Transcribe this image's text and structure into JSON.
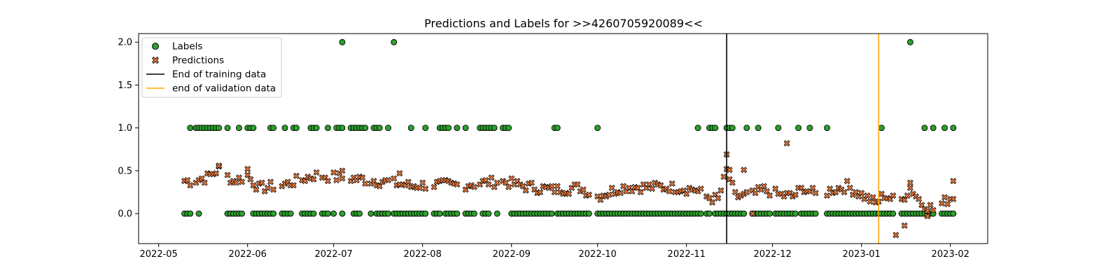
{
  "chart_data": {
    "type": "scatter",
    "title": "Predictions and Labels for >>4260705920089<<",
    "xlabel": "",
    "ylabel": "",
    "xlim": [
      "2022-04-24",
      "2023-02-14"
    ],
    "ylim": [
      -0.35,
      2.1
    ],
    "grid": false,
    "legend_position": "top-left",
    "x_ticks": [
      "2022-05",
      "2022-06",
      "2022-07",
      "2022-08",
      "2022-09",
      "2022-10",
      "2022-11",
      "2022-12",
      "2023-01",
      "2023-02"
    ],
    "y_ticks": [
      "0.0",
      "0.5",
      "1.0",
      "1.5",
      "2.0"
    ],
    "vlines": [
      {
        "name": "End of training data",
        "x": "2022-11-15",
        "color": "#000000"
      },
      {
        "name": "end of validation data",
        "x": "2023-01-07",
        "color": "#FFA500"
      }
    ],
    "series": [
      {
        "name": "Labels",
        "marker": "circle",
        "color": "#2ca02c",
        "groups": [
          {
            "y": 0.0,
            "ranges": [
              [
                "2022-05-10",
                "2022-05-12"
              ],
              [
                "2022-05-15",
                "2022-05-15"
              ],
              [
                "2022-05-25",
                "2022-05-30"
              ],
              [
                "2022-06-03",
                "2022-06-10"
              ],
              [
                "2022-06-13",
                "2022-06-16"
              ],
              [
                "2022-06-20",
                "2022-06-24"
              ],
              [
                "2022-06-27",
                "2022-06-29"
              ],
              [
                "2022-07-01",
                "2022-07-01"
              ],
              [
                "2022-07-04",
                "2022-07-04"
              ],
              [
                "2022-07-08",
                "2022-07-10"
              ],
              [
                "2022-07-14",
                "2022-07-14"
              ],
              [
                "2022-07-16",
                "2022-07-20"
              ],
              [
                "2022-07-22",
                "2022-08-02"
              ],
              [
                "2022-08-05",
                "2022-08-07"
              ],
              [
                "2022-08-09",
                "2022-08-13"
              ],
              [
                "2022-08-16",
                "2022-08-19"
              ],
              [
                "2022-08-22",
                "2022-08-24"
              ],
              [
                "2022-08-27",
                "2022-08-27"
              ],
              [
                "2022-09-01",
                "2022-09-15"
              ],
              [
                "2022-09-17",
                "2022-09-28"
              ],
              [
                "2022-10-01",
                "2022-11-06"
              ],
              [
                "2022-11-08",
                "2022-11-09"
              ],
              [
                "2022-11-11",
                "2022-11-21"
              ],
              [
                "2022-11-24",
                "2022-11-30"
              ],
              [
                "2022-12-02",
                "2022-12-09"
              ],
              [
                "2022-12-11",
                "2022-12-16"
              ],
              [
                "2022-12-20",
                "2023-01-12"
              ],
              [
                "2023-01-15",
                "2023-01-26"
              ],
              [
                "2023-01-29",
                "2023-02-02"
              ]
            ]
          },
          {
            "y": 1.0,
            "ranges": [
              [
                "2022-05-12",
                "2022-05-12"
              ],
              [
                "2022-05-14",
                "2022-05-22"
              ],
              [
                "2022-05-25",
                "2022-05-25"
              ],
              [
                "2022-05-29",
                "2022-05-29"
              ],
              [
                "2022-06-01",
                "2022-06-03"
              ],
              [
                "2022-06-09",
                "2022-06-10"
              ],
              [
                "2022-06-14",
                "2022-06-14"
              ],
              [
                "2022-06-17",
                "2022-06-18"
              ],
              [
                "2022-06-23",
                "2022-06-25"
              ],
              [
                "2022-06-29",
                "2022-06-29"
              ],
              [
                "2022-07-02",
                "2022-07-04"
              ],
              [
                "2022-07-07",
                "2022-07-12"
              ],
              [
                "2022-07-15",
                "2022-07-17"
              ],
              [
                "2022-07-20",
                "2022-07-20"
              ],
              [
                "2022-07-28",
                "2022-07-28"
              ],
              [
                "2022-08-02",
                "2022-08-02"
              ],
              [
                "2022-08-07",
                "2022-08-10"
              ],
              [
                "2022-08-13",
                "2022-08-13"
              ],
              [
                "2022-08-16",
                "2022-08-16"
              ],
              [
                "2022-08-21",
                "2022-08-26"
              ],
              [
                "2022-08-29",
                "2022-08-31"
              ],
              [
                "2022-09-16",
                "2022-09-17"
              ],
              [
                "2022-10-01",
                "2022-10-01"
              ],
              [
                "2022-11-05",
                "2022-11-05"
              ],
              [
                "2022-11-09",
                "2022-11-11"
              ],
              [
                "2022-11-15",
                "2022-11-17"
              ],
              [
                "2022-11-22",
                "2022-11-22"
              ],
              [
                "2022-11-26",
                "2022-11-26"
              ],
              [
                "2022-12-03",
                "2022-12-03"
              ],
              [
                "2022-12-10",
                "2022-12-10"
              ],
              [
                "2022-12-14",
                "2022-12-14"
              ],
              [
                "2022-12-20",
                "2022-12-20"
              ],
              [
                "2023-01-08",
                "2023-01-08"
              ],
              [
                "2023-01-23",
                "2023-01-23"
              ],
              [
                "2023-01-26",
                "2023-01-26"
              ],
              [
                "2023-01-30",
                "2023-01-30"
              ],
              [
                "2023-02-02",
                "2023-02-02"
              ]
            ]
          },
          {
            "y": 2.0,
            "ranges": [
              [
                "2022-07-04",
                "2022-07-04"
              ],
              [
                "2022-07-22",
                "2022-07-22"
              ],
              [
                "2023-01-18",
                "2023-01-18"
              ]
            ]
          }
        ]
      },
      {
        "name": "Predictions",
        "marker": "x",
        "color": "#e8773a",
        "anchors": [
          [
            "2022-05-12",
            0.38
          ],
          [
            "2022-05-18",
            0.42
          ],
          [
            "2022-05-22",
            0.52
          ],
          [
            "2022-05-27",
            0.38
          ],
          [
            "2022-06-01",
            0.44
          ],
          [
            "2022-06-05",
            0.3
          ],
          [
            "2022-06-12",
            0.32
          ],
          [
            "2022-06-18",
            0.38
          ],
          [
            "2022-06-25",
            0.45
          ],
          [
            "2022-07-03",
            0.42
          ],
          [
            "2022-07-10",
            0.4
          ],
          [
            "2022-07-20",
            0.37
          ],
          [
            "2022-07-28",
            0.32
          ],
          [
            "2022-08-05",
            0.34
          ],
          [
            "2022-08-12",
            0.33
          ],
          [
            "2022-08-20",
            0.35
          ],
          [
            "2022-08-28",
            0.38
          ],
          [
            "2022-09-05",
            0.32
          ],
          [
            "2022-09-15",
            0.28
          ],
          [
            "2022-09-25",
            0.3
          ],
          [
            "2022-10-01",
            0.2
          ],
          [
            "2022-10-10",
            0.31
          ],
          [
            "2022-10-25",
            0.31
          ],
          [
            "2022-11-04",
            0.28
          ],
          [
            "2022-11-08",
            0.2
          ],
          [
            "2022-11-12",
            0.16
          ],
          [
            "2022-11-14",
            0.38
          ],
          [
            "2022-11-15",
            0.5
          ],
          [
            "2022-11-18",
            0.2
          ],
          [
            "2022-11-24",
            0.22
          ],
          [
            "2022-11-28",
            0.28
          ],
          [
            "2022-12-03",
            0.22
          ],
          [
            "2022-12-08",
            0.2
          ],
          [
            "2022-12-12",
            0.3
          ],
          [
            "2022-12-17",
            0.2
          ],
          [
            "2022-12-22",
            0.28
          ],
          [
            "2022-12-27",
            0.32
          ],
          [
            "2023-01-02",
            0.2
          ],
          [
            "2023-01-06",
            0.12
          ],
          [
            "2023-01-09",
            0.22
          ],
          [
            "2023-01-14",
            0.12
          ],
          [
            "2023-01-18",
            0.3
          ],
          [
            "2023-01-22",
            0.12
          ],
          [
            "2023-01-26",
            0.05
          ],
          [
            "2023-01-30",
            0.14
          ],
          [
            "2023-02-03",
            0.22
          ]
        ],
        "outliers": [
          [
            "2022-05-22",
            0.56
          ],
          [
            "2022-06-01",
            0.52
          ],
          [
            "2022-07-04",
            0.5
          ],
          [
            "2022-07-24",
            0.47
          ],
          [
            "2022-11-15",
            0.69
          ],
          [
            "2022-11-16",
            0.51
          ],
          [
            "2022-11-21",
            0.51
          ],
          [
            "2022-11-24",
            0.0
          ],
          [
            "2022-12-06",
            0.82
          ],
          [
            "2023-01-13",
            -0.25
          ],
          [
            "2023-01-16",
            -0.14
          ],
          [
            "2023-01-18",
            0.36
          ],
          [
            "2023-01-24",
            -0.03
          ],
          [
            "2023-02-02",
            0.38
          ]
        ]
      }
    ]
  }
}
